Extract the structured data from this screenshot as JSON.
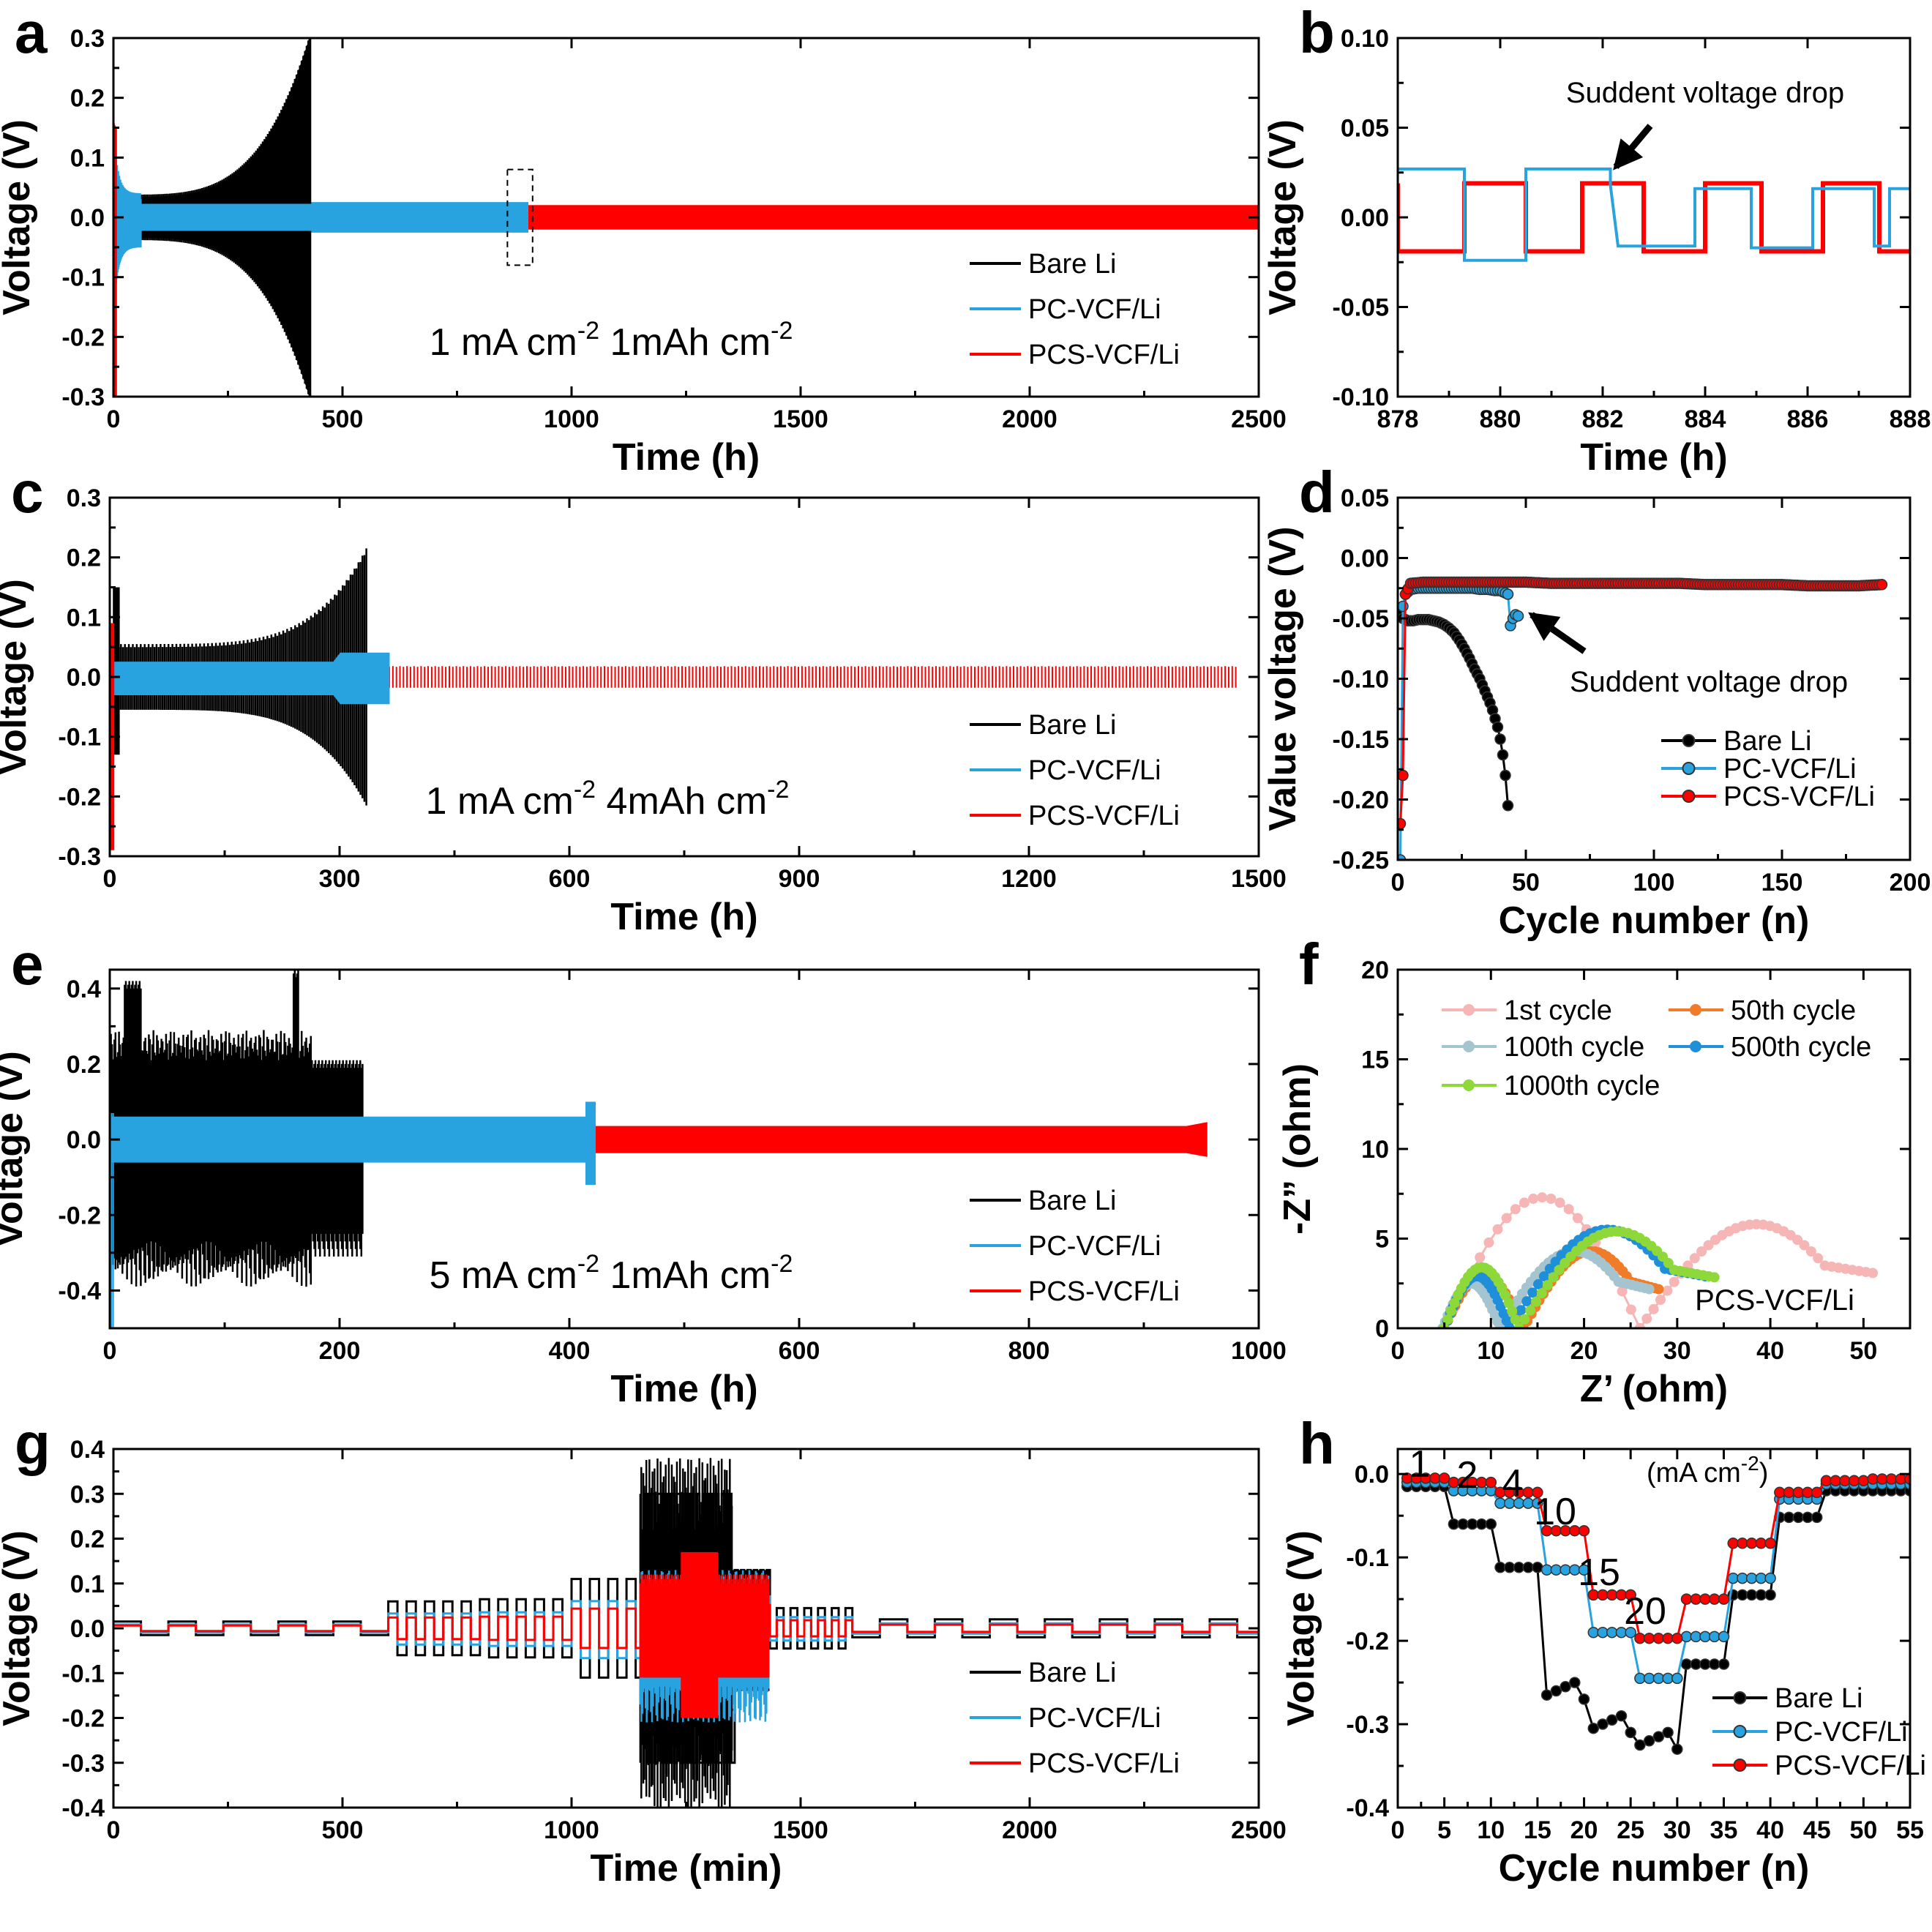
{
  "colors": {
    "bare": "#000000",
    "pc": "#29a3e0",
    "pcs": "#ff0000",
    "c1": "#f6b6b6",
    "c50": "#f07c2a",
    "c100": "#a4c4d0",
    "c500": "#1e8fd8",
    "c1000": "#8ed83a"
  },
  "chart_data": [
    {
      "id": "a",
      "type": "line",
      "panel_label": "a",
      "xlabel": "Time (h)",
      "ylabel": "Voltage (V)",
      "xlim": [
        0,
        2500
      ],
      "ylim": [
        -0.3,
        0.3
      ],
      "xticks": [
        "0",
        "500",
        "1000",
        "1500",
        "2000",
        "2500"
      ],
      "yticks": [
        "-0.3",
        "-0.2",
        "-0.1",
        "0.0",
        "0.1",
        "0.2",
        "0.3"
      ],
      "condition": {
        "main": "1 mA cm",
        "sup1": "-2",
        "mid": " 1mAh cm",
        "sup2": "-2"
      },
      "legend": [
        "Bare Li",
        "PC-VCF/Li",
        "PCS-VCF/Li"
      ],
      "series": [
        {
          "name": "Bare Li",
          "x_end": 430,
          "amplitude": "grows from 0.03 to 0.3"
        },
        {
          "name": "PC-VCF/Li",
          "x_end": 905,
          "amplitude": 0.025
        },
        {
          "name": "PCS-VCF/Li",
          "x_end": 2500,
          "amplitude": 0.02
        }
      ]
    },
    {
      "id": "b",
      "type": "line",
      "panel_label": "b",
      "xlabel": "Time (h)",
      "ylabel": "Voltage (V)",
      "xlim": [
        878,
        888
      ],
      "ylim": [
        -0.1,
        0.1
      ],
      "xticks": [
        "878",
        "880",
        "882",
        "884",
        "886",
        "888"
      ],
      "yticks": [
        "-0.10",
        "-0.05",
        "0.00",
        "0.05",
        "0.10"
      ],
      "annotation": "Suddent voltage drop",
      "series": [
        {
          "name": "PCS-VCF/Li",
          "amplitude": 0.019,
          "period_h": 2.2
        },
        {
          "name": "PC-VCF/Li",
          "amplitude_before": 0.027,
          "amplitude_after": 0.016,
          "period_h": 2.2,
          "drop_at_h": 882.2
        }
      ]
    },
    {
      "id": "c",
      "type": "line",
      "panel_label": "c",
      "xlabel": "Time (h)",
      "ylabel": "Voltage (V)",
      "xlim": [
        0,
        1500
      ],
      "ylim": [
        -0.3,
        0.3
      ],
      "xticks": [
        "0",
        "300",
        "600",
        "900",
        "1200",
        "1500"
      ],
      "yticks": [
        "-0.3",
        "-0.2",
        "-0.1",
        "0.0",
        "0.1",
        "0.2",
        "0.3"
      ],
      "condition": {
        "main": "1 mA cm",
        "sup1": "-2",
        "mid": " 4mAh cm",
        "sup2": "-2"
      },
      "legend": [
        "Bare Li",
        "PC-VCF/Li",
        "PCS-VCF/Li"
      ],
      "series": [
        {
          "name": "Bare Li",
          "x_end": 335,
          "amplitude": "grows from 0.05 to 0.21"
        },
        {
          "name": "PC-VCF/Li",
          "x_end": 365,
          "amplitude": 0.03
        },
        {
          "name": "PCS-VCF/Li",
          "x_end": 1470,
          "amplitude": 0.018
        }
      ]
    },
    {
      "id": "d",
      "type": "scatter",
      "panel_label": "d",
      "xlabel": "Cycle number (n)",
      "ylabel": "Value voltage (V)",
      "xlim": [
        0,
        200
      ],
      "ylim": [
        -0.25,
        0.05
      ],
      "xticks": [
        "0",
        "50",
        "100",
        "150",
        "200"
      ],
      "yticks": [
        "-0.25",
        "-0.20",
        "-0.15",
        "-0.10",
        "-0.05",
        "0.00",
        "0.05"
      ],
      "annotation": "Suddent voltage drop",
      "legend": [
        "Bare Li",
        "PC-VCF/Li",
        "PCS-VCF/Li"
      ],
      "series": [
        {
          "name": "Bare Li",
          "x": [
            1,
            2,
            4,
            6,
            8,
            10,
            12,
            14,
            16,
            18,
            20,
            22,
            24,
            26,
            28,
            30,
            31,
            32,
            33,
            34,
            35,
            36,
            37,
            38,
            39,
            40,
            41,
            42,
            43
          ],
          "y": [
            -0.045,
            -0.05,
            -0.052,
            -0.052,
            -0.051,
            -0.051,
            -0.051,
            -0.052,
            -0.053,
            -0.055,
            -0.058,
            -0.062,
            -0.068,
            -0.075,
            -0.083,
            -0.092,
            -0.096,
            -0.1,
            -0.105,
            -0.11,
            -0.115,
            -0.12,
            -0.126,
            -0.133,
            -0.14,
            -0.15,
            -0.163,
            -0.18,
            -0.205
          ]
        },
        {
          "name": "PC-VCF/Li",
          "x": [
            1,
            2,
            3,
            5,
            8,
            11,
            14,
            17,
            20,
            23,
            26,
            29,
            32,
            35,
            38,
            40,
            41,
            42,
            43,
            44,
            45,
            46,
            47
          ],
          "y": [
            -0.25,
            -0.04,
            -0.03,
            -0.026,
            -0.025,
            -0.025,
            -0.025,
            -0.025,
            -0.025,
            -0.025,
            -0.025,
            -0.025,
            -0.026,
            -0.026,
            -0.027,
            -0.027,
            -0.028,
            -0.029,
            -0.03,
            -0.056,
            -0.05,
            -0.047,
            -0.048
          ]
        },
        {
          "name": "PCS-VCF/Li",
          "x": [
            1,
            2,
            3,
            5,
            10,
            20,
            30,
            40,
            50,
            60,
            70,
            80,
            90,
            100,
            110,
            120,
            130,
            140,
            150,
            160,
            170,
            180,
            189
          ],
          "y": [
            -0.22,
            -0.18,
            -0.03,
            -0.021,
            -0.02,
            -0.02,
            -0.02,
            -0.02,
            -0.02,
            -0.021,
            -0.021,
            -0.021,
            -0.021,
            -0.021,
            -0.021,
            -0.022,
            -0.022,
            -0.022,
            -0.022,
            -0.023,
            -0.023,
            -0.023,
            -0.022
          ]
        }
      ]
    },
    {
      "id": "e",
      "type": "line",
      "panel_label": "e",
      "xlabel": "Time (h)",
      "ylabel": "Voltage (V)",
      "xlim": [
        0,
        1000
      ],
      "ylim": [
        -0.5,
        0.45
      ],
      "xticks": [
        "0",
        "200",
        "400",
        "600",
        "800",
        "1000"
      ],
      "yticks": [
        "-0.4",
        "-0.2",
        "0.0",
        "0.2",
        "0.4"
      ],
      "condition": {
        "main": "5 mA cm",
        "sup1": "-2",
        "mid": " 1mAh cm",
        "sup2": "-2"
      },
      "legend": [
        "Bare Li",
        "PC-VCF/Li",
        "PCS-VCF/Li"
      ],
      "series": [
        {
          "name": "Bare Li",
          "x_end": 220,
          "amplitude": 0.25
        },
        {
          "name": "PC-VCF/Li",
          "x_end": 420,
          "amplitude": 0.06
        },
        {
          "name": "PCS-VCF/Li",
          "x_end": 955,
          "amplitude": 0.04
        }
      ]
    },
    {
      "id": "f",
      "type": "scatter",
      "panel_label": "f",
      "xlabel": "Z’ (ohm)",
      "ylabel": "-Z” (ohm)",
      "xlim": [
        0,
        55
      ],
      "ylim": [
        0,
        20
      ],
      "xticks": [
        "0",
        "10",
        "20",
        "30",
        "40",
        "50"
      ],
      "yticks": [
        "0",
        "5",
        "10",
        "15",
        "20"
      ],
      "annotation": "PCS-VCF/Li",
      "legend": [
        "1st cycle",
        "50th cycle",
        "100th cycle",
        "500th cycle",
        "1000th cycle"
      ],
      "series": [
        {
          "name": "1st cycle",
          "arcs": [
            [
              5,
              26,
              7.3
            ],
            [
              26,
              51,
              5.8
            ]
          ]
        },
        {
          "name": "50th cycle",
          "arcs": [
            [
              5,
              13.5,
              3.0
            ],
            [
              13.5,
              28,
              4.3
            ]
          ]
        },
        {
          "name": "100th cycle",
          "arcs": [
            [
              4.8,
              11,
              2.5
            ],
            [
              11,
              27,
              4.3
            ]
          ]
        },
        {
          "name": "500th cycle",
          "arcs": [
            [
              5,
              12,
              2.9
            ],
            [
              12,
              33,
              5.5
            ]
          ]
        },
        {
          "name": "1000th cycle",
          "arcs": [
            [
              5,
              13,
              3.4
            ],
            [
              13,
              34,
              5.4
            ]
          ]
        }
      ]
    },
    {
      "id": "g",
      "type": "line",
      "panel_label": "g",
      "xlabel": "Time (min)",
      "ylabel": "Voltage (V)",
      "xlim": [
        0,
        2500
      ],
      "ylim": [
        -0.4,
        0.4
      ],
      "xticks": [
        "0",
        "500",
        "1000",
        "1500",
        "2000",
        "2500"
      ],
      "yticks": [
        "-0.4",
        "-0.3",
        "-0.2",
        "-0.1",
        "0.0",
        "0.1",
        "0.2",
        "0.3",
        "0.4"
      ],
      "legend": [
        "Bare Li",
        "PC-VCF/Li",
        "PCS-VCF/Li"
      ],
      "stages": [
        [
          0,
          600,
          0.015
        ],
        [
          600,
          800,
          0.06
        ],
        [
          800,
          1000,
          0.065
        ],
        [
          1000,
          1150,
          0.11
        ],
        [
          1150,
          1350,
          0.3
        ],
        [
          1350,
          1430,
          0.13
        ],
        [
          1430,
          1600,
          0.045
        ],
        [
          1600,
          2500,
          0.02
        ]
      ]
    },
    {
      "id": "h",
      "type": "scatter",
      "panel_label": "h",
      "xlabel": "Cycle number (n)",
      "ylabel": "Voltage (V)",
      "xlim": [
        0,
        55
      ],
      "ylim": [
        -0.4,
        0.03
      ],
      "xticks": [
        "0",
        "5",
        "10",
        "15",
        "20",
        "25",
        "30",
        "35",
        "40",
        "45",
        "50",
        "55"
      ],
      "yticks": [
        "-0.4",
        "-0.3",
        "-0.2",
        "-0.1",
        "0.0"
      ],
      "unit_label": "(mA cm",
      "unit_sup": "-2",
      "unit_close": ")",
      "rate_labels": [
        "1",
        "2",
        "4",
        "10",
        "15",
        "20"
      ],
      "legend": [
        "Bare Li",
        "PC-VCF/Li",
        "PCS-VCF/Li"
      ],
      "series": [
        {
          "name": "Bare Li",
          "levels": [
            -0.015,
            -0.06,
            -0.112,
            -0.27,
            -0.31,
            -0.33,
            -0.228,
            -0.145,
            -0.052,
            -0.02,
            -0.02
          ]
        },
        {
          "name": "PC-VCF/Li",
          "levels": [
            -0.01,
            -0.02,
            -0.035,
            -0.115,
            -0.19,
            -0.245,
            -0.195,
            -0.125,
            -0.03,
            -0.012,
            -0.012
          ]
        },
        {
          "name": "PCS-VCF/Li",
          "levels": [
            -0.005,
            -0.01,
            -0.022,
            -0.068,
            -0.145,
            -0.197,
            -0.15,
            -0.083,
            -0.022,
            -0.008,
            -0.006
          ]
        }
      ]
    }
  ]
}
